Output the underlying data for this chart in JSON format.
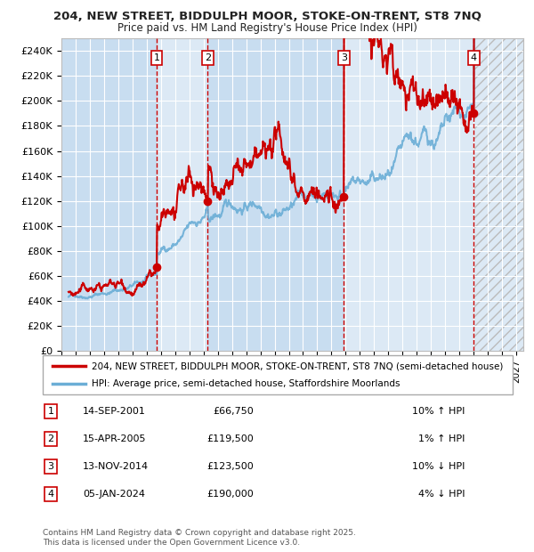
{
  "title_line1": "204, NEW STREET, BIDDULPH MOOR, STOKE-ON-TRENT, ST8 7NQ",
  "title_line2": "Price paid vs. HM Land Registry's House Price Index (HPI)",
  "ylim": [
    0,
    250000
  ],
  "yticks": [
    0,
    20000,
    40000,
    60000,
    80000,
    100000,
    120000,
    140000,
    160000,
    180000,
    200000,
    220000,
    240000
  ],
  "ytick_labels": [
    "£0",
    "£20K",
    "£40K",
    "£60K",
    "£80K",
    "£100K",
    "£120K",
    "£140K",
    "£160K",
    "£180K",
    "£200K",
    "£220K",
    "£240K"
  ],
  "xlim_start": 1995.0,
  "xlim_end": 2027.5,
  "background_color": "#ffffff",
  "plot_bg_color": "#dce9f5",
  "grid_color": "#ffffff",
  "hpi_color": "#6baed6",
  "price_color": "#cc0000",
  "sale_marker_color": "#cc0000",
  "vline_color": "#cc0000",
  "legend_box_color": "#cc0000",
  "sales": [
    {
      "num": 1,
      "date_str": "14-SEP-2001",
      "date_x": 2001.71,
      "price": 66750,
      "hpi_note": "10% ↑ HPI"
    },
    {
      "num": 2,
      "date_str": "15-APR-2005",
      "date_x": 2005.29,
      "price": 119500,
      "hpi_note": "1% ↑ HPI"
    },
    {
      "num": 3,
      "date_str": "13-NOV-2014",
      "date_x": 2014.87,
      "price": 123500,
      "hpi_note": "10% ↓ HPI"
    },
    {
      "num": 4,
      "date_str": "05-JAN-2024",
      "date_x": 2024.01,
      "price": 190000,
      "hpi_note": "4% ↓ HPI"
    }
  ],
  "legend_line1": "204, NEW STREET, BIDDULPH MOOR, STOKE-ON-TRENT, ST8 7NQ (semi-detached house)",
  "legend_line2": "HPI: Average price, semi-detached house, Staffordshire Moorlands",
  "footer": "Contains HM Land Registry data © Crown copyright and database right 2025.\nThis data is licensed under the Open Government Licence v3.0."
}
